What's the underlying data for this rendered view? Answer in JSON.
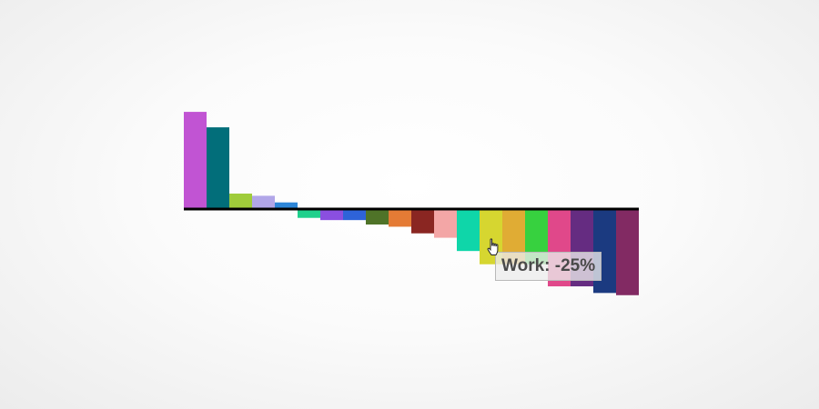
{
  "chart_data": {
    "type": "bar",
    "categories": [
      "",
      "",
      "",
      "",
      "",
      "",
      "",
      "",
      "",
      "",
      "",
      "",
      "",
      "",
      "",
      "",
      "",
      "",
      "",
      ""
    ],
    "values": [
      44,
      37,
      7,
      6,
      3,
      -4,
      -5,
      -5,
      -7,
      -8,
      -11,
      -13,
      -19,
      -25,
      -25,
      -25,
      -35,
      -35,
      -38,
      -39
    ],
    "colors": [
      "#c154d3",
      "#026e7a",
      "#9fcc3a",
      "#b1a6e8",
      "#2d86d8",
      "#1fd08c",
      "#8a4fe0",
      "#2e63d9",
      "#4f7328",
      "#e47b35",
      "#8a2622",
      "#f3a6a6",
      "#0fd6a9",
      "#d6d630",
      "#e0ac34",
      "#37d13f",
      "#e0488a",
      "#652c81",
      "#1b3a80",
      "#822a63"
    ],
    "ylim": [
      -45,
      45
    ],
    "grid": false,
    "legend": "none"
  },
  "tooltip": {
    "text": "Work: -25%",
    "index": 13
  },
  "cursor_icon": "pointer-hand-icon"
}
